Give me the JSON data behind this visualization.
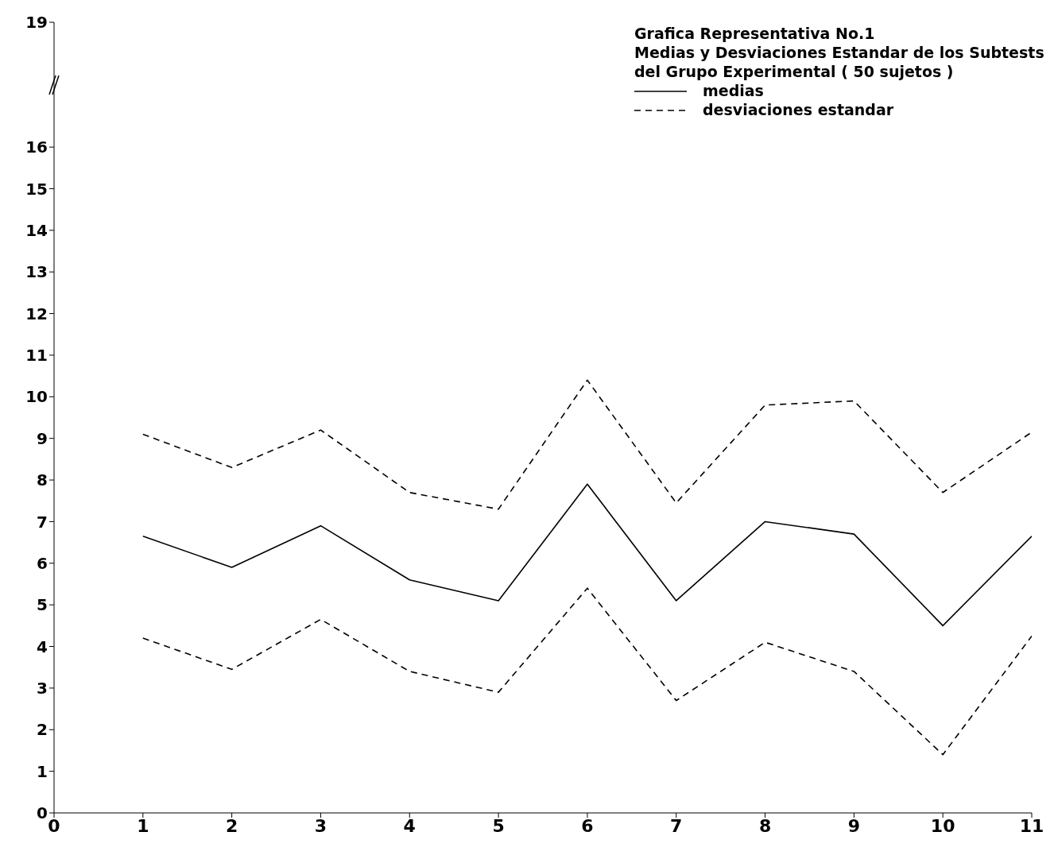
{
  "chart_data": {
    "type": "line",
    "title": "Grafica Representativa  No.1",
    "subtitle": "Medias y Desviaciones Estandar de los Subtests del Grupo Experimental ( 50 sujetos )",
    "x": [
      1,
      2,
      3,
      4,
      5,
      6,
      7,
      8,
      9,
      10,
      11
    ],
    "series": [
      {
        "name": "medias",
        "color": "#000000",
        "line_style": "solid",
        "values": [
          6.65,
          5.9,
          6.9,
          5.6,
          5.1,
          7.9,
          5.1,
          7.0,
          6.7,
          4.5,
          6.65
        ]
      },
      {
        "name": "desviaciones estandar",
        "color": "#000000",
        "line_style": "dashed",
        "values": [
          9.1,
          8.3,
          9.2,
          7.7,
          7.3,
          10.4,
          7.45,
          9.8,
          9.9,
          7.7,
          9.15
        ]
      },
      {
        "color": "#000000",
        "line_style": "dashed",
        "values": [
          4.2,
          3.45,
          4.65,
          3.4,
          2.9,
          5.4,
          2.7,
          4.1,
          3.4,
          1.4,
          4.25
        ]
      }
    ],
    "xlim": [
      0,
      11
    ],
    "xticks": [
      0,
      1,
      2,
      3,
      4,
      5,
      6,
      7,
      8,
      9,
      10,
      11
    ],
    "ylim": [
      0,
      19
    ],
    "yticks": [
      0,
      1,
      2,
      3,
      4,
      5,
      6,
      7,
      8,
      9,
      10,
      11,
      12,
      13,
      14,
      15,
      16,
      19
    ],
    "grid": false,
    "legend": "top right",
    "marker": "none"
  }
}
